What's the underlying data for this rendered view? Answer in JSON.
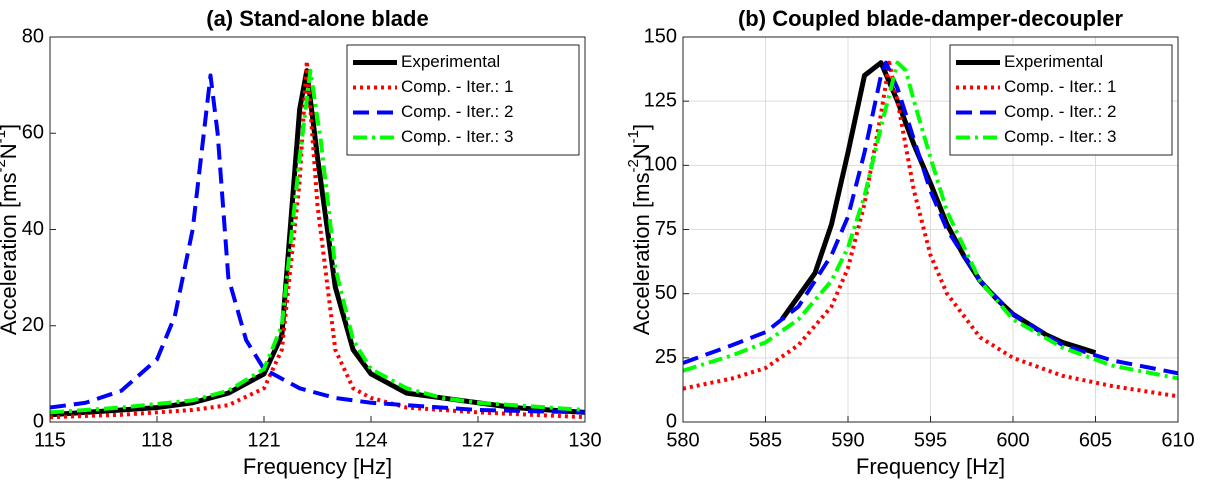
{
  "chart_data": [
    {
      "type": "line",
      "title": "(a) Stand-alone blade",
      "xlabel": "Frequency [Hz]",
      "ylabel": [
        "Acceleration [ms",
        "-2",
        "N",
        "-1",
        "]"
      ],
      "xlim": [
        115,
        130
      ],
      "xticks": [
        115,
        118,
        121,
        124,
        127,
        130
      ],
      "ylim": [
        0,
        80
      ],
      "yticks": [
        0,
        20,
        40,
        60,
        80
      ],
      "grid": false,
      "legend": "upper right",
      "series": [
        {
          "name": "Experimental",
          "color": "#000000",
          "style": "solid",
          "x": [
            115,
            116,
            117,
            118,
            119,
            120,
            121,
            121.5,
            122,
            122.2,
            122.5,
            123,
            123.5,
            124,
            125,
            126,
            127,
            128,
            129,
            130
          ],
          "values": [
            1.5,
            2,
            2.5,
            3,
            4,
            6,
            10,
            18,
            65,
            73,
            55,
            28,
            15,
            10,
            6,
            5,
            4,
            3,
            2.5,
            2
          ]
        },
        {
          "name": "Comp. - Iter.: 1",
          "color": "#ff0000",
          "style": "dotted",
          "x": [
            115,
            117,
            119,
            120,
            121,
            121.5,
            122,
            122.2,
            122.5,
            123,
            123.5,
            124,
            125,
            127,
            130
          ],
          "values": [
            1,
            1.5,
            2.5,
            3.5,
            7,
            15,
            50,
            75,
            45,
            15,
            7,
            5,
            3,
            2,
            1
          ]
        },
        {
          "name": "Comp. - Iter.: 2",
          "color": "#0000ff",
          "style": "dashed",
          "x": [
            115,
            116,
            117,
            118,
            118.5,
            119,
            119.5,
            119.7,
            120,
            120.5,
            121,
            122,
            123,
            124,
            125,
            127,
            130
          ],
          "values": [
            3,
            4,
            6.5,
            13,
            22,
            40,
            72,
            60,
            30,
            17,
            11,
            7,
            5,
            4,
            3.5,
            2.5,
            2
          ]
        },
        {
          "name": "Comp. - Iter.: 3",
          "color": "#00ff00",
          "style": "dashdot",
          "x": [
            115,
            117,
            119,
            120,
            121,
            121.5,
            122,
            122.3,
            122.6,
            123,
            123.5,
            124,
            125,
            126,
            127,
            128,
            130
          ],
          "values": [
            2,
            3,
            4.5,
            6.5,
            11,
            20,
            55,
            73,
            58,
            32,
            17,
            11,
            7,
            5,
            4,
            3.5,
            2.5
          ]
        }
      ]
    },
    {
      "type": "line",
      "title": "(b) Coupled blade-damper-decoupler",
      "xlabel": "Frequency [Hz]",
      "ylabel": [
        "Acceleration [ms",
        "-2",
        "N",
        "-1",
        "]"
      ],
      "xlim": [
        580,
        610
      ],
      "xticks": [
        580,
        585,
        590,
        595,
        600,
        605,
        610
      ],
      "ylim": [
        0,
        150
      ],
      "yticks": [
        0,
        25,
        50,
        75,
        100,
        125,
        150
      ],
      "grid": true,
      "legend": "upper right",
      "series": [
        {
          "name": "Experimental",
          "color": "#000000",
          "style": "solid",
          "x": [
            586,
            588,
            589,
            590,
            591,
            592,
            593,
            594,
            595,
            596,
            597,
            598,
            599,
            600,
            601,
            602,
            603,
            604,
            605
          ],
          "values": [
            40,
            58,
            77,
            105,
            135,
            140,
            125,
            108,
            93,
            77,
            65,
            55,
            48,
            42,
            38,
            34,
            31,
            29,
            27
          ]
        },
        {
          "name": "Comp. - Iter.: 1",
          "color": "#ff0000",
          "style": "dotted",
          "x": [
            580,
            583,
            585,
            587,
            589,
            590,
            591,
            592,
            592.5,
            593,
            594,
            595,
            596,
            598,
            600,
            603,
            606,
            610
          ],
          "values": [
            13,
            17,
            21,
            30,
            45,
            60,
            85,
            120,
            140,
            125,
            90,
            65,
            50,
            33,
            25,
            18,
            14,
            10
          ]
        },
        {
          "name": "Comp. - Iter.: 2",
          "color": "#0000ff",
          "style": "dashed",
          "x": [
            580,
            583,
            585,
            587,
            589,
            590,
            591,
            592,
            592.3,
            593,
            594,
            595,
            596,
            598,
            600,
            603,
            606,
            610
          ],
          "values": [
            23,
            30,
            35,
            45,
            65,
            80,
            105,
            135,
            140,
            130,
            110,
            90,
            75,
            55,
            42,
            30,
            24,
            19
          ]
        },
        {
          "name": "Comp. - Iter.: 3",
          "color": "#00ff00",
          "style": "dashdot",
          "x": [
            580,
            583,
            585,
            587,
            589,
            590,
            591,
            592,
            593,
            593.5,
            594,
            595,
            596,
            598,
            600,
            603,
            606,
            610
          ],
          "values": [
            20,
            26,
            31,
            40,
            55,
            68,
            88,
            115,
            140,
            137,
            125,
            103,
            82,
            55,
            40,
            29,
            22,
            17
          ]
        }
      ]
    }
  ]
}
